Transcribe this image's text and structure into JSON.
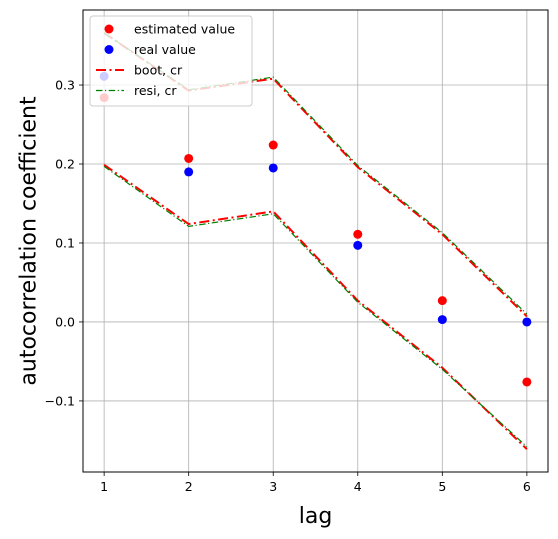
{
  "chart_data": {
    "type": "scatter",
    "title": "",
    "xlabel": "lag",
    "ylabel": "autocorrelation coefficient",
    "xlim": [
      0.75,
      6.25
    ],
    "ylim": [
      -0.19,
      0.395
    ],
    "xticks": [
      1,
      2,
      3,
      4,
      5,
      6
    ],
    "yticks": [
      -0.1,
      0.0,
      0.1,
      0.2,
      0.3
    ],
    "ytick_labels": [
      "−0.1",
      "0.0",
      "0.1",
      "0.2",
      "0.3"
    ],
    "grid": true,
    "legend_position": "upper-left",
    "x": [
      1,
      2,
      3,
      4,
      5,
      6
    ],
    "series": [
      {
        "name": "estimated value",
        "kind": "points",
        "color": "#ff0000",
        "values": [
          0.284,
          0.207,
          0.224,
          0.111,
          0.027,
          -0.076
        ]
      },
      {
        "name": "real value",
        "kind": "points",
        "color": "#0000ff",
        "values": [
          0.311,
          0.19,
          0.195,
          0.097,
          0.003,
          0.0
        ]
      },
      {
        "name": "boot, cr",
        "kind": "dashdot",
        "color": "#ff0000",
        "upper": [
          0.366,
          0.293,
          0.308,
          0.196,
          0.111,
          0.007
        ],
        "lower": [
          0.199,
          0.124,
          0.14,
          0.027,
          -0.058,
          -0.161
        ]
      },
      {
        "name": "resi, cr",
        "kind": "dashdot-thin",
        "color": "#008000",
        "upper": [
          0.366,
          0.294,
          0.31,
          0.198,
          0.113,
          0.01
        ],
        "lower": [
          0.197,
          0.121,
          0.137,
          0.025,
          -0.06,
          -0.158
        ]
      }
    ]
  }
}
